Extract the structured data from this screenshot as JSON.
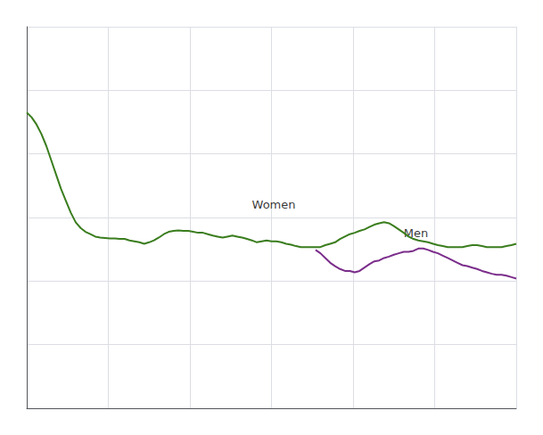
{
  "chart_data": {
    "type": "line",
    "xlim": [
      0,
      100
    ],
    "ylim": [
      0,
      8
    ],
    "xticks": [
      0,
      16.666666666666668,
      33.333333333333336,
      50,
      66.66666666666667,
      83.33333333333334,
      100
    ],
    "yticks": [
      0,
      1.3333333333333333,
      2.6666666666666665,
      4,
      5.333333333333333,
      6.666666666666666,
      8
    ],
    "grid": true,
    "tick_labels": false,
    "series": [
      {
        "color": "#3a7d1e",
        "x": [
          0,
          1,
          2,
          3,
          4,
          5,
          6,
          7,
          8,
          9,
          10,
          11,
          12,
          13,
          14,
          15,
          16,
          17,
          18,
          19,
          20,
          21,
          22,
          23,
          24,
          25,
          26,
          27,
          28,
          29,
          30,
          31,
          32,
          33,
          34,
          35,
          36,
          37,
          38,
          39,
          40,
          41,
          42,
          43,
          44,
          45,
          46,
          47,
          48,
          49,
          50,
          51,
          52,
          53,
          54,
          55,
          56,
          57,
          58,
          59,
          60,
          61,
          62,
          63,
          64,
          65,
          66,
          67,
          68,
          69,
          70,
          71,
          72,
          73,
          74,
          75,
          76,
          77,
          78,
          79,
          80,
          81,
          82,
          83,
          84,
          85,
          86,
          87,
          88,
          89,
          90,
          91,
          92,
          93,
          94,
          95,
          96,
          97,
          98,
          99,
          100
        ],
        "values": [
          6.2,
          6.1,
          5.95,
          5.75,
          5.5,
          5.2,
          4.9,
          4.6,
          4.35,
          4.1,
          3.9,
          3.78,
          3.7,
          3.65,
          3.6,
          3.58,
          3.57,
          3.56,
          3.56,
          3.55,
          3.55,
          3.52,
          3.5,
          3.48,
          3.45,
          3.48,
          3.52,
          3.58,
          3.65,
          3.7,
          3.72,
          3.73,
          3.72,
          3.72,
          3.7,
          3.68,
          3.68,
          3.65,
          3.62,
          3.6,
          3.58,
          3.6,
          3.62,
          3.6,
          3.58,
          3.55,
          3.52,
          3.48,
          3.5,
          3.52,
          3.5,
          3.5,
          3.48,
          3.45,
          3.43,
          3.4,
          3.38,
          3.38,
          3.38,
          3.38,
          3.38,
          3.42,
          3.45,
          3.48,
          3.55,
          3.6,
          3.65,
          3.68,
          3.72,
          3.75,
          3.8,
          3.85,
          3.88,
          3.9,
          3.88,
          3.82,
          3.75,
          3.68,
          3.6,
          3.55,
          3.52,
          3.5,
          3.48,
          3.45,
          3.42,
          3.4,
          3.38,
          3.38,
          3.38,
          3.38,
          3.4,
          3.42,
          3.42,
          3.4,
          3.38,
          3.38,
          3.38,
          3.38,
          3.4,
          3.42,
          3.45
        ]
      },
      {
        "color": "#7b2d8b",
        "x": [
          59,
          60,
          61,
          62,
          63,
          64,
          65,
          66,
          67,
          68,
          69,
          70,
          71,
          72,
          73,
          74,
          75,
          76,
          77,
          78,
          79,
          80,
          81,
          82,
          83,
          84,
          85,
          86,
          87,
          88,
          89,
          90,
          91,
          92,
          93,
          94,
          95,
          96,
          97,
          98,
          99,
          100
        ],
        "values": [
          3.32,
          3.25,
          3.15,
          3.05,
          2.98,
          2.92,
          2.88,
          2.88,
          2.85,
          2.88,
          2.95,
          3.02,
          3.08,
          3.1,
          3.15,
          3.18,
          3.22,
          3.25,
          3.28,
          3.28,
          3.3,
          3.35,
          3.35,
          3.32,
          3.28,
          3.25,
          3.2,
          3.15,
          3.1,
          3.05,
          3.0,
          2.98,
          2.95,
          2.92,
          2.88,
          2.85,
          2.82,
          2.8,
          2.8,
          2.78,
          2.75,
          2.72
        ]
      }
    ],
    "annotations": [
      {
        "text": "Women",
        "x": 46,
        "y": 4.15
      },
      {
        "text": "Men",
        "x": 77,
        "y": 3.55
      }
    ]
  }
}
